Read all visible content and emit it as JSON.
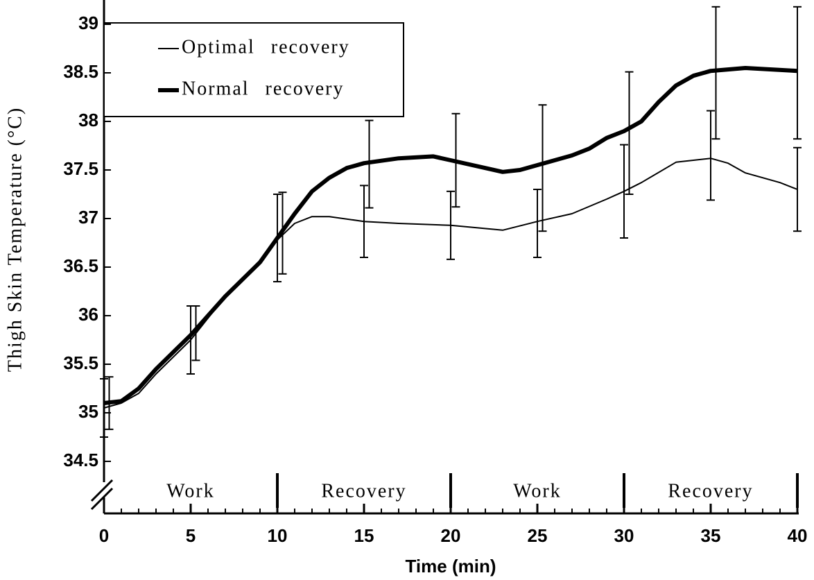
{
  "chart_data": {
    "type": "line",
    "xlabel": "Time (min)",
    "ylabel": "Thigh Skin Temperature (°C)",
    "xlim": [
      0,
      40
    ],
    "xticks": [
      0,
      5,
      10,
      15,
      20,
      25,
      30,
      35,
      40
    ],
    "xminorticks": [
      0,
      1,
      2,
      3,
      4,
      5,
      6,
      7,
      8,
      9,
      10,
      11,
      12,
      13,
      14,
      15,
      16,
      17,
      18,
      19,
      20,
      21,
      22,
      23,
      24,
      25,
      26,
      27,
      28,
      29,
      30,
      31,
      32,
      33,
      34,
      35,
      36,
      37,
      38,
      39,
      40
    ],
    "ylim": [
      34.5,
      39
    ],
    "yticks": [
      34.5,
      35,
      35.5,
      36,
      36.5,
      37,
      37.5,
      38,
      38.5,
      39
    ],
    "legend": "top-left",
    "phases": [
      {
        "label": "Work",
        "start": 0,
        "end": 10
      },
      {
        "label": "Recovery",
        "start": 10,
        "end": 20
      },
      {
        "label": "Work",
        "start": 20,
        "end": 30
      },
      {
        "label": "Recovery",
        "start": 30,
        "end": 40
      }
    ],
    "series": [
      {
        "name": "Optimal recovery",
        "color": "#000",
        "width": 2,
        "x": [
          0,
          1,
          2,
          3,
          5,
          7,
          9,
          10,
          11,
          12,
          13,
          15,
          17,
          20,
          23,
          25,
          27,
          29,
          30,
          31,
          33,
          35,
          36,
          37,
          39,
          40
        ],
        "values": [
          35.05,
          35.1,
          35.2,
          35.4,
          35.75,
          36.2,
          36.55,
          36.78,
          36.95,
          37.02,
          37.02,
          36.97,
          36.95,
          36.93,
          36.88,
          36.97,
          37.05,
          37.2,
          37.28,
          37.37,
          37.58,
          37.62,
          37.57,
          37.47,
          37.37,
          37.3
        ],
        "error_bars": {
          "x": [
            0,
            5,
            10,
            15,
            20,
            25,
            30,
            35,
            40
          ],
          "values": [
            35.05,
            35.75,
            36.8,
            36.97,
            36.93,
            36.95,
            37.28,
            37.65,
            37.3
          ],
          "errors": [
            0.3,
            0.35,
            0.45,
            0.37,
            0.35,
            0.35,
            0.48,
            0.46,
            0.43
          ]
        }
      },
      {
        "name": "Normal recovery",
        "color": "#000",
        "width": 6,
        "x": [
          0,
          1,
          2,
          3,
          5,
          7,
          9,
          10,
          11,
          12,
          13,
          14,
          15,
          17,
          19,
          20,
          22,
          23,
          24,
          25,
          27,
          28,
          29,
          30,
          31,
          32,
          33,
          34,
          35,
          37,
          40
        ],
        "values": [
          35.1,
          35.12,
          35.25,
          35.45,
          35.8,
          36.2,
          36.55,
          36.8,
          37.05,
          37.28,
          37.42,
          37.52,
          37.57,
          37.62,
          37.64,
          37.6,
          37.52,
          37.48,
          37.5,
          37.55,
          37.65,
          37.72,
          37.83,
          37.9,
          38,
          38.2,
          38.37,
          38.47,
          38.52,
          38.55,
          38.52
        ],
        "error_bars": {
          "x": [
            0.3,
            5.3,
            10.3,
            15.3,
            20.3,
            25.3,
            30.3,
            35.3,
            40
          ],
          "values": [
            35.1,
            35.82,
            36.85,
            37.56,
            37.6,
            37.52,
            37.88,
            38.5,
            38.5
          ],
          "errors": [
            0.27,
            0.28,
            0.42,
            0.45,
            0.48,
            0.65,
            0.63,
            0.68,
            0.68
          ]
        }
      }
    ]
  }
}
